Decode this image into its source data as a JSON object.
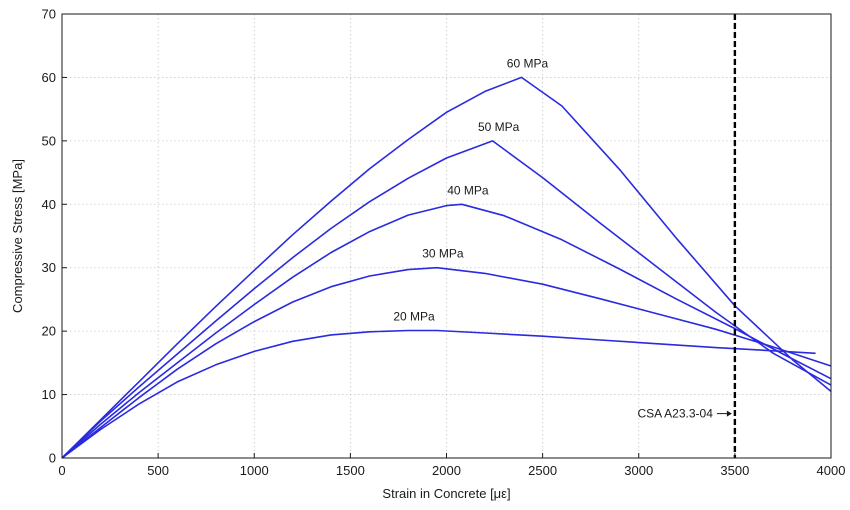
{
  "chart_data": {
    "type": "line",
    "title": "",
    "xlabel": "Strain in Concrete [με]",
    "ylabel": "Compressive Stress [MPa]",
    "xlim": [
      0,
      4000
    ],
    "ylim": [
      0,
      70
    ],
    "xticks": [
      0,
      500,
      1000,
      1500,
      2000,
      2500,
      3000,
      3500,
      4000
    ],
    "yticks": [
      0,
      10,
      20,
      30,
      40,
      50,
      60,
      70
    ],
    "grid": true,
    "legend": "none",
    "line_color": "#2a2ae0",
    "series": [
      {
        "name": "20 MPa",
        "x": [
          0,
          200,
          400,
          600,
          800,
          1000,
          1200,
          1400,
          1600,
          1800,
          1950,
          2200,
          2500,
          2800,
          3100,
          3400,
          3700,
          3920
        ],
        "y": [
          0,
          4.5,
          8.5,
          12,
          14.7,
          16.8,
          18.4,
          19.4,
          19.9,
          20.1,
          20.1,
          19.7,
          19.2,
          18.6,
          18.0,
          17.4,
          16.9,
          16.5
        ]
      },
      {
        "name": "30 MPa",
        "x": [
          0,
          200,
          400,
          600,
          800,
          1000,
          1200,
          1400,
          1600,
          1800,
          1950,
          2200,
          2500,
          2800,
          3100,
          3400,
          3700,
          4000
        ],
        "y": [
          0,
          4.8,
          9.5,
          14,
          18,
          21.5,
          24.6,
          27,
          28.7,
          29.7,
          30.0,
          29.1,
          27.4,
          25.1,
          22.7,
          20.3,
          17.5,
          14.5
        ]
      },
      {
        "name": "40 MPa",
        "x": [
          0,
          200,
          400,
          600,
          800,
          1000,
          1200,
          1400,
          1600,
          1800,
          2000,
          2080,
          2300,
          2600,
          2900,
          3200,
          3500,
          3750,
          4000
        ],
        "y": [
          0,
          5.3,
          10.3,
          15,
          19.7,
          24.2,
          28.5,
          32.4,
          35.7,
          38.3,
          39.8,
          40.0,
          38.2,
          34.4,
          29.8,
          25,
          20.4,
          16.4,
          12.5
        ]
      },
      {
        "name": "50 MPa",
        "x": [
          0,
          200,
          400,
          600,
          800,
          1000,
          1200,
          1400,
          1600,
          1800,
          2000,
          2240,
          2500,
          2800,
          3100,
          3400,
          3700,
          4000
        ],
        "y": [
          0,
          5.8,
          11.2,
          16.4,
          21.6,
          26.7,
          31.6,
          36.2,
          40.4,
          44.1,
          47.3,
          50.0,
          44.2,
          37,
          30,
          23,
          16.5,
          11.5
        ]
      },
      {
        "name": "60 MPa",
        "x": [
          0,
          200,
          400,
          600,
          800,
          1000,
          1200,
          1400,
          1600,
          1800,
          2000,
          2200,
          2390,
          2600,
          2900,
          3200,
          3500,
          3800,
          4000
        ],
        "y": [
          0,
          6,
          12,
          18,
          23.9,
          29.6,
          35.2,
          40.5,
          45.6,
          50.2,
          54.5,
          57.8,
          60.0,
          55.5,
          45.5,
          34.5,
          24,
          15.5,
          10.5
        ]
      }
    ],
    "annotations": [
      {
        "type": "vline",
        "x": 3500,
        "label": "CSA A23.3-04",
        "color": "#000000",
        "style": "dashed"
      }
    ]
  }
}
